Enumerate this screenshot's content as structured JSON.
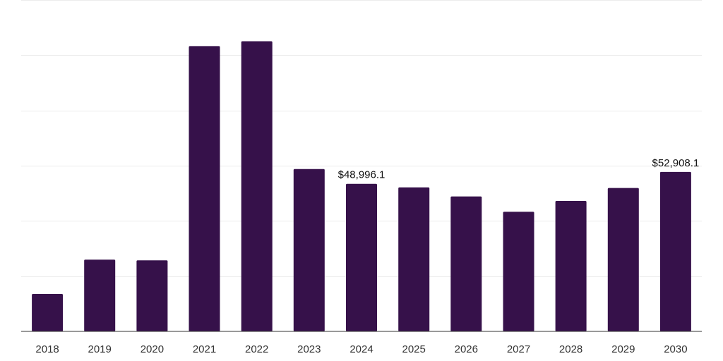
{
  "chart_data": {
    "type": "bar",
    "title": "",
    "xlabel": "",
    "ylabel": "",
    "categories": [
      "2018",
      "2019",
      "2020",
      "2021",
      "2022",
      "2023",
      "2024",
      "2025",
      "2026",
      "2027",
      "2028",
      "2029",
      "2030"
    ],
    "values": [
      12400,
      23800,
      23600,
      94700,
      96300,
      53900,
      48996.1,
      47800,
      44800,
      39700,
      43300,
      47600,
      52908.1
    ],
    "ylim": [
      0,
      110000
    ],
    "grid_step": 18333.3,
    "data_labels": [
      {
        "index": 6,
        "text": "$48,996.1"
      },
      {
        "index": 12,
        "text": "$52,908.1"
      }
    ],
    "colors": {
      "bar": "#36114a",
      "grid": "#ececec",
      "axis": "#333333"
    }
  }
}
